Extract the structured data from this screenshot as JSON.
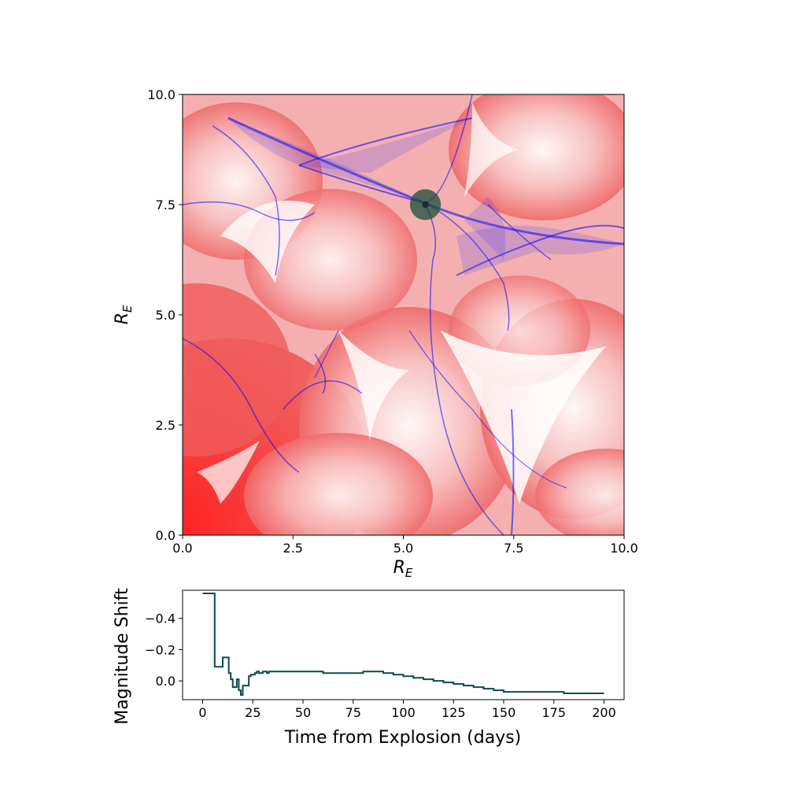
{
  "colors": {
    "map_red": "#ff0000",
    "map_white": "#ffffff",
    "caustic_blue": "#0000ff",
    "source_marker": "#1a4d3a",
    "light_curve": "#0d4a4a",
    "axis": "#000000"
  },
  "chart_data": [
    {
      "type": "heatmap",
      "name": "magnification-map",
      "title": "",
      "xlabel_base": "R",
      "xlabel_sub": "E",
      "ylabel_base": "R",
      "ylabel_sub": "E",
      "xlim": [
        0.0,
        10.0
      ],
      "ylim": [
        0.0,
        10.0
      ],
      "xticks": [
        "0.0",
        "2.5",
        "5.0",
        "7.5",
        "10.0"
      ],
      "yticks": [
        "0.0",
        "2.5",
        "5.0",
        "7.5",
        "10.0"
      ],
      "xtick_values": [
        0,
        2.5,
        5,
        7.5,
        10
      ],
      "ytick_values": [
        0,
        2.5,
        5,
        7.5,
        10
      ],
      "colormap": "bwr (blue = high magnification caustics, red = low)",
      "source_position": [
        5.5,
        7.5
      ],
      "source_radius": 0.35
    },
    {
      "type": "line",
      "name": "light-curve",
      "title": "",
      "xlabel": "Time from Explosion (days)",
      "ylabel": "Magnitude Shift",
      "xlim": [
        -10,
        210
      ],
      "ylim": [
        0.12,
        -0.58
      ],
      "y_inverted": true,
      "xticks": [
        "0",
        "25",
        "50",
        "75",
        "100",
        "125",
        "150",
        "175",
        "200"
      ],
      "xtick_values": [
        0,
        25,
        50,
        75,
        100,
        125,
        150,
        175,
        200
      ],
      "yticks": [
        "−0.4",
        "−0.2",
        "0.0"
      ],
      "ytick_values": [
        -0.4,
        -0.2,
        0.0
      ],
      "step": true,
      "x": [
        0,
        5,
        6,
        9,
        10,
        12,
        13,
        14,
        15,
        16,
        17,
        18,
        19,
        20,
        21,
        22,
        23,
        24,
        25,
        26,
        27,
        28,
        29,
        30,
        31,
        32,
        33,
        34,
        35,
        36,
        38,
        40,
        42,
        44,
        46,
        50,
        55,
        60,
        65,
        70,
        75,
        80,
        82,
        85,
        90,
        95,
        100,
        105,
        110,
        115,
        120,
        125,
        130,
        135,
        140,
        145,
        150,
        155,
        160,
        170,
        180,
        190,
        200
      ],
      "y": [
        -0.56,
        -0.56,
        -0.09,
        -0.09,
        -0.15,
        -0.15,
        -0.05,
        -0.01,
        0.04,
        0.04,
        -0.01,
        0.06,
        0.09,
        0.03,
        0.03,
        0.03,
        -0.03,
        -0.04,
        -0.04,
        -0.05,
        -0.06,
        -0.05,
        -0.05,
        -0.06,
        -0.06,
        -0.05,
        -0.06,
        -0.06,
        -0.06,
        -0.06,
        -0.06,
        -0.06,
        -0.06,
        -0.06,
        -0.06,
        -0.06,
        -0.06,
        -0.05,
        -0.05,
        -0.05,
        -0.05,
        -0.06,
        -0.06,
        -0.06,
        -0.05,
        -0.04,
        -0.03,
        -0.02,
        -0.01,
        0.0,
        0.01,
        0.02,
        0.03,
        0.04,
        0.05,
        0.06,
        0.07,
        0.07,
        0.07,
        0.07,
        0.08,
        0.08,
        0.08
      ]
    }
  ]
}
